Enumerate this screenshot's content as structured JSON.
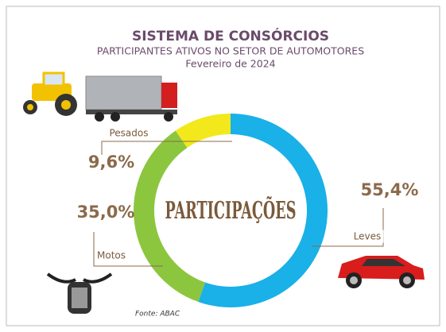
{
  "chart_data": {
    "type": "pie",
    "title": "SISTEMA DE CONSÓRCIOS",
    "subtitle": "PARTICIPANTES ATIVOS NO SETOR DE AUTOMOTORES",
    "date": "Fevereiro de 2024",
    "center_text": "PARTICIPAÇÕES",
    "source": "Fonte: ABAC",
    "categories": [
      "Leves",
      "Motos",
      "Pesados"
    ],
    "values": [
      55.4,
      35.0,
      9.6
    ],
    "value_labels": [
      "55,4%",
      "35,0%",
      "9,6%"
    ],
    "colors": [
      "#1ab0e8",
      "#8cc63f",
      "#f2e81c"
    ],
    "donut": true
  }
}
